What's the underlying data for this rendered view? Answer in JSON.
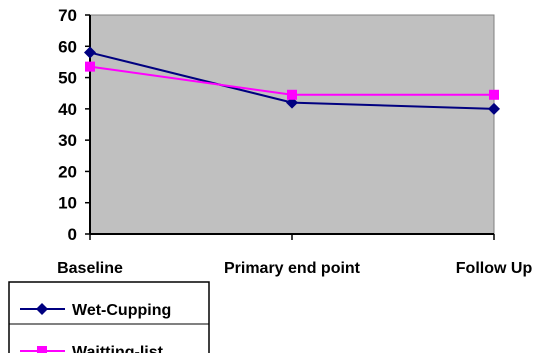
{
  "chart_data": {
    "type": "line",
    "categories": [
      "Baseline",
      "Primary end point",
      "Follow Up"
    ],
    "series": [
      {
        "name": "Wet-Cupping",
        "values": [
          58,
          42,
          40
        ],
        "color": "#000080",
        "marker": "diamond"
      },
      {
        "name": "Waitting-list",
        "values": [
          53.5,
          44.5,
          44.5
        ],
        "color": "#ff00ff",
        "marker": "square"
      }
    ],
    "ylim": [
      0,
      70
    ],
    "yticks": [
      0,
      10,
      20,
      30,
      40,
      50,
      60,
      70
    ],
    "title": "",
    "xlabel": "",
    "ylabel": "",
    "plot_background": "#c0c0c0",
    "grid": false,
    "legend_position": "bottom-left"
  }
}
